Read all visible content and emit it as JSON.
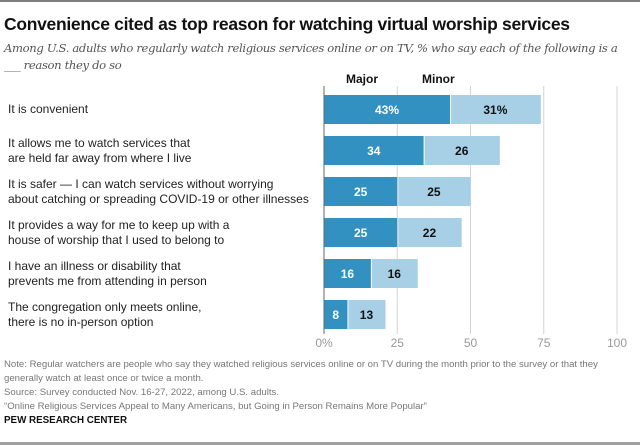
{
  "chart_data": {
    "type": "bar",
    "orientation": "horizontal-stacked",
    "title": "Convenience cited as top reason for watching virtual worship services",
    "subtitle": "Among U.S. adults who regularly watch religious services online or on TV, % who say each of the following is a ___ reason they do so",
    "categories": [
      [
        "It is convenient"
      ],
      [
        "It allows me to watch services that",
        "are held far away from where I live"
      ],
      [
        "It is safer — I can watch services without worrying",
        "about catching or spreading COVID-19 or other illnesses"
      ],
      [
        "It provides a way for me to keep up with a",
        "house of worship that I used to belong to"
      ],
      [
        "I have an illness or disability that",
        "prevents me from attending in person"
      ],
      [
        "The congregation only meets online,",
        "there is no in-person option"
      ]
    ],
    "series": [
      {
        "name": "Major",
        "color": "#3291c1",
        "label_color": "#ffffff",
        "values": [
          43,
          34,
          25,
          25,
          16,
          8
        ]
      },
      {
        "name": "Minor",
        "color": "#a7cfe5",
        "label_color": "#111111",
        "values": [
          31,
          26,
          25,
          22,
          16,
          13
        ]
      }
    ],
    "first_label_suffix": "%",
    "xlim": [
      0,
      100
    ],
    "xticks": [
      0,
      25,
      50,
      75,
      100
    ],
    "xtick_labels": [
      "0%",
      "25",
      "50",
      "75",
      "100"
    ],
    "grid": true,
    "legend": "top"
  },
  "notes": {
    "note": "Note: Regular watchers are people who say they watched religious services online or on TV during the month prior to the survey or that they generally watch at least once or twice a month.",
    "source": "Source: Survey conducted Nov. 16-27, 2022, among U.S. adults.",
    "report": "“Online Religious Services Appeal to Many Americans, but Going in Person Remains More Popular”"
  },
  "brand": "PEW RESEARCH CENTER"
}
